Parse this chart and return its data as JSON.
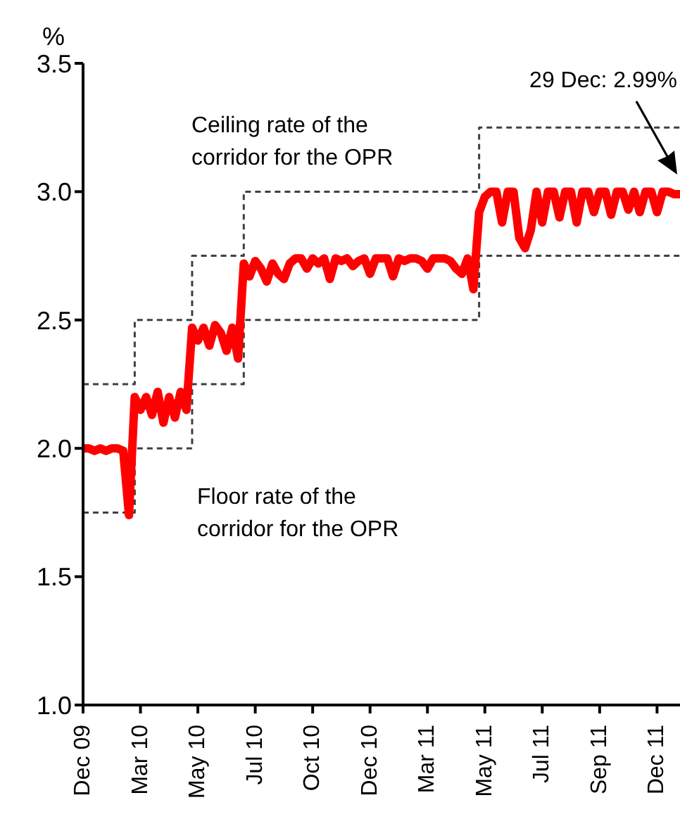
{
  "chart_data": {
    "type": "line",
    "ylabel": "%",
    "categories": [
      "Dec 09",
      null,
      null,
      null,
      null,
      null,
      null,
      null,
      null,
      null,
      "Mar 10",
      null,
      null,
      null,
      null,
      null,
      null,
      null,
      null,
      null,
      "May 10",
      null,
      null,
      null,
      null,
      null,
      null,
      null,
      null,
      null,
      "Jul 10",
      null,
      null,
      null,
      null,
      null,
      null,
      null,
      null,
      null,
      "Oct 10",
      null,
      null,
      null,
      null,
      null,
      null,
      null,
      null,
      null,
      "Dec 10",
      null,
      null,
      null,
      null,
      null,
      null,
      null,
      null,
      null,
      "Mar 11",
      null,
      null,
      null,
      null,
      null,
      null,
      null,
      null,
      null,
      "May 11",
      null,
      null,
      null,
      null,
      null,
      null,
      null,
      null,
      null,
      "Jul 11",
      null,
      null,
      null,
      null,
      null,
      null,
      null,
      null,
      null,
      "Sep 11",
      null,
      null,
      null,
      null,
      null,
      null,
      null,
      null,
      null,
      "Dec 11",
      null,
      null,
      null,
      null
    ],
    "ylim": [
      1.0,
      3.5
    ],
    "yticks": [
      {
        "value": 1,
        "label": "1.0"
      },
      {
        "value": 1.5,
        "label": "1.5"
      },
      {
        "value": 2,
        "label": "2.0"
      },
      {
        "value": 2.5,
        "label": "2.5"
      },
      {
        "value": 3,
        "label": "3.0"
      },
      {
        "value": 3.5,
        "label": "3.5"
      }
    ],
    "marker": "none",
    "series": [
      {
        "type": "step",
        "color": "#404040",
        "line_style": "dashed",
        "values": [
          2.25,
          2.25,
          2.25,
          2.25,
          2.25,
          2.25,
          2.25,
          2.25,
          2.25,
          2.5,
          2.5,
          2.5,
          2.5,
          2.5,
          2.5,
          2.5,
          2.5,
          2.5,
          2.5,
          2.75,
          2.75,
          2.75,
          2.75,
          2.75,
          2.75,
          2.75,
          2.75,
          2.75,
          3.0,
          3.0,
          3.0,
          3.0,
          3.0,
          3.0,
          3.0,
          3.0,
          3.0,
          3.0,
          3.0,
          3.0,
          3.0,
          3.0,
          3.0,
          3.0,
          3.0,
          3.0,
          3.0,
          3.0,
          3.0,
          3.0,
          3.0,
          3.0,
          3.0,
          3.0,
          3.0,
          3.0,
          3.0,
          3.0,
          3.0,
          3.0,
          3.0,
          3.0,
          3.0,
          3.0,
          3.0,
          3.0,
          3.0,
          3.0,
          3.0,
          3.25,
          3.25,
          3.25,
          3.25,
          3.25,
          3.25,
          3.25,
          3.25,
          3.25,
          3.25,
          3.25,
          3.25,
          3.25,
          3.25,
          3.25,
          3.25,
          3.25,
          3.25,
          3.25,
          3.25,
          3.25,
          3.25,
          3.25,
          3.25,
          3.25,
          3.25,
          3.25,
          3.25,
          3.25,
          3.25,
          3.25,
          3.25,
          3.25,
          3.25,
          3.25,
          3.25
        ]
      },
      {
        "type": "step",
        "color": "#404040",
        "line_style": "dashed",
        "values": [
          1.75,
          1.75,
          1.75,
          1.75,
          1.75,
          1.75,
          1.75,
          1.75,
          1.75,
          2.0,
          2.0,
          2.0,
          2.0,
          2.0,
          2.0,
          2.0,
          2.0,
          2.0,
          2.0,
          2.25,
          2.25,
          2.25,
          2.25,
          2.25,
          2.25,
          2.25,
          2.25,
          2.25,
          2.5,
          2.5,
          2.5,
          2.5,
          2.5,
          2.5,
          2.5,
          2.5,
          2.5,
          2.5,
          2.5,
          2.5,
          2.5,
          2.5,
          2.5,
          2.5,
          2.5,
          2.5,
          2.5,
          2.5,
          2.5,
          2.5,
          2.5,
          2.5,
          2.5,
          2.5,
          2.5,
          2.5,
          2.5,
          2.5,
          2.5,
          2.5,
          2.5,
          2.5,
          2.5,
          2.5,
          2.5,
          2.5,
          2.5,
          2.5,
          2.5,
          2.75,
          2.75,
          2.75,
          2.75,
          2.75,
          2.75,
          2.75,
          2.75,
          2.75,
          2.75,
          2.75,
          2.75,
          2.75,
          2.75,
          2.75,
          2.75,
          2.75,
          2.75,
          2.75,
          2.75,
          2.75,
          2.75,
          2.75,
          2.75,
          2.75,
          2.75,
          2.75,
          2.75,
          2.75,
          2.75,
          2.75,
          2.75,
          2.75,
          2.75,
          2.75,
          2.75
        ]
      },
      {
        "type": "line",
        "color": "#ff0000",
        "line_style": "solid",
        "values": [
          2.0,
          2.0,
          1.99,
          2.0,
          1.99,
          2.0,
          2.0,
          1.99,
          1.74,
          2.2,
          2.15,
          2.2,
          2.13,
          2.22,
          2.1,
          2.2,
          2.12,
          2.22,
          2.15,
          2.47,
          2.42,
          2.47,
          2.4,
          2.48,
          2.45,
          2.38,
          2.47,
          2.35,
          2.72,
          2.67,
          2.73,
          2.7,
          2.65,
          2.72,
          2.68,
          2.66,
          2.72,
          2.74,
          2.74,
          2.7,
          2.74,
          2.72,
          2.74,
          2.66,
          2.74,
          2.73,
          2.74,
          2.71,
          2.73,
          2.74,
          2.68,
          2.74,
          2.74,
          2.74,
          2.67,
          2.74,
          2.73,
          2.74,
          2.74,
          2.73,
          2.7,
          2.74,
          2.74,
          2.74,
          2.73,
          2.7,
          2.68,
          2.74,
          2.62,
          2.92,
          2.98,
          3.0,
          3.0,
          2.88,
          3.0,
          3.0,
          2.82,
          2.78,
          2.85,
          3.0,
          2.88,
          3.0,
          3.0,
          2.9,
          3.0,
          3.0,
          2.88,
          3.0,
          3.0,
          2.92,
          3.0,
          3.0,
          2.91,
          3.0,
          3.0,
          2.93,
          3.0,
          2.92,
          3.0,
          3.0,
          2.92,
          3.0,
          3.0,
          2.99,
          2.99
        ]
      }
    ],
    "annotations": [
      "Ceiling rate of the corridor for the OPR",
      "Floor rate of the corridor for the OPR",
      "29 Dec: 2.99%"
    ]
  }
}
